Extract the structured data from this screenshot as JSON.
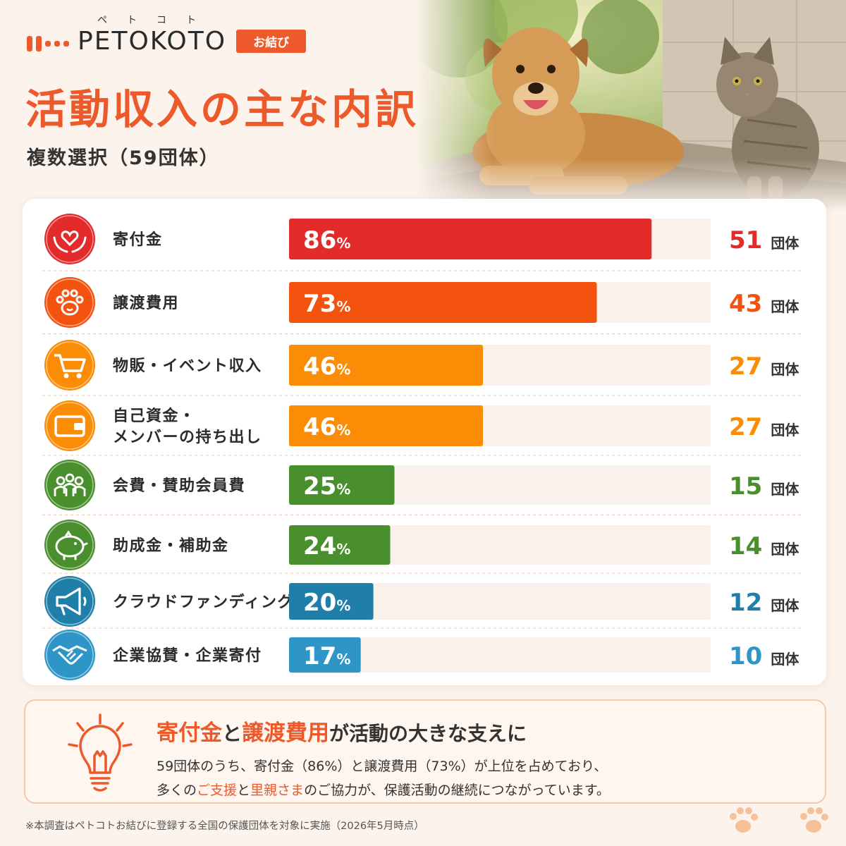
{
  "brand": {
    "kana": "ペトコト",
    "name": "PETOKOTO",
    "tag": "お結び"
  },
  "header": {
    "title": "活動収入の主な内訳",
    "subtitle": "複数選択（59団体）"
  },
  "chart_data": {
    "type": "bar",
    "orientation": "horizontal",
    "title": "活動収入の主な内訳",
    "subtitle": "複数選択（59団体）",
    "categories": [
      "寄付金",
      "譲渡費用",
      "物販・イベント収入",
      "自己資金・メンバーの持ち出し",
      "会費・賛助会員費",
      "助成金・補助金",
      "クラウドファンディング",
      "企業協賛・企業寄付"
    ],
    "category_lines": [
      [
        "寄付金"
      ],
      [
        "譲渡費用"
      ],
      [
        "物販・イベント収入"
      ],
      [
        "自己資金・",
        "メンバーの持ち出し"
      ],
      [
        "会費・賛助会員費"
      ],
      [
        "助成金・補助金"
      ],
      [
        "クラウドファンディング"
      ],
      [
        "企業協賛・企業寄付"
      ]
    ],
    "series": [
      {
        "name": "",
        "values": [
          86,
          73,
          46,
          46,
          25,
          24,
          20,
          17
        ]
      }
    ],
    "counts": [
      51,
      43,
      27,
      27,
      15,
      14,
      12,
      10
    ],
    "value_suffix": "%",
    "count_unit": "団体",
    "xlim": [
      0,
      100
    ],
    "grid": false,
    "colors": [
      "#e32b2b",
      "#f4520f",
      "#fb8c06",
      "#fb8c06",
      "#4a8f2e",
      "#4a8f2e",
      "#1f7fa8",
      "#2e96c7"
    ],
    "icons": [
      "heart-hands-icon",
      "paw-icon",
      "cart-icon",
      "wallet-icon",
      "people-icon",
      "piggy-bank-icon",
      "megaphone-icon",
      "handshake-icon"
    ]
  },
  "callout": {
    "title_parts": [
      "寄付金",
      "と",
      "譲渡費用",
      "が活動の大きな支えに"
    ],
    "line1": "59団体のうち、寄付金（86%）と譲渡費用（73%）が上位を占めており、",
    "line2_parts": [
      "多くの",
      "ご支援",
      "と",
      "里親さま",
      "のご協力が、保護活動の継続につながっています。"
    ]
  },
  "footnote": "※本調査はペトコトお結びに登録する全国の保護団体を対象に実施（2026年5月時点）",
  "colors": {
    "accent": "#ec5a2b",
    "background": "#fbf3ec"
  }
}
